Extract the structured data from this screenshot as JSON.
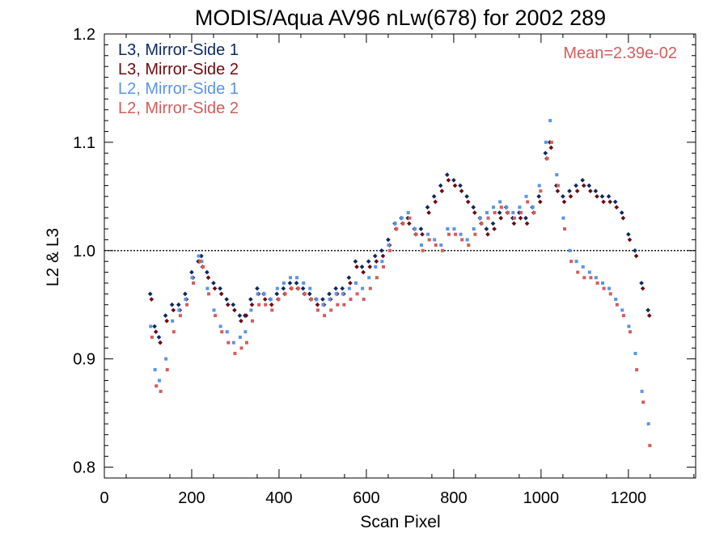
{
  "chart_data": {
    "type": "scatter",
    "title": "MODIS/Aqua AV96 nLw(678) for 2002 289",
    "xlabel": "Scan Pixel",
    "ylabel": "L2 & L3",
    "xlim": [
      0,
      1354
    ],
    "ylim": [
      0.79,
      1.2
    ],
    "xticks": [
      0,
      200,
      400,
      600,
      800,
      1000,
      1200
    ],
    "xtick_labels": [
      "0",
      "200",
      "400",
      "600",
      "800",
      "1000",
      "1200"
    ],
    "yticks": [
      0.8,
      0.9,
      1.0,
      1.1,
      1.2
    ],
    "ytick_labels": [
      "0.8",
      "0.9",
      "1.0",
      "1.1",
      "1.2"
    ],
    "reference_line": 1.0,
    "annotation": "Mean=2.39e-02",
    "legend_position": "top-left",
    "grid": false,
    "series": [
      {
        "name": "L3, Mirror-Side 1",
        "color": "#0a2a5e",
        "marker": "diamond",
        "x": [
          105,
          115,
          125,
          140,
          155,
          170,
          185,
          200,
          215,
          222,
          235,
          250,
          265,
          280,
          295,
          310,
          322,
          335,
          350,
          365,
          380,
          395,
          410,
          425,
          440,
          455,
          470,
          485,
          500,
          515,
          530,
          545,
          560,
          575,
          590,
          605,
          620,
          635,
          650,
          665,
          680,
          695,
          710,
          725,
          740,
          755,
          770,
          785,
          800,
          815,
          830,
          845,
          860,
          875,
          890,
          905,
          920,
          935,
          950,
          965,
          980,
          995,
          1010,
          1020,
          1035,
          1050,
          1065,
          1080,
          1095,
          1110,
          1125,
          1140,
          1155,
          1170,
          1185,
          1200,
          1215,
          1230,
          1245
        ],
        "y": [
          0.96,
          0.93,
          0.92,
          0.94,
          0.95,
          0.95,
          0.96,
          0.98,
          0.99,
          0.995,
          0.98,
          0.97,
          0.965,
          0.955,
          0.95,
          0.94,
          0.94,
          0.955,
          0.965,
          0.96,
          0.955,
          0.96,
          0.965,
          0.97,
          0.97,
          0.965,
          0.96,
          0.955,
          0.955,
          0.96,
          0.965,
          0.965,
          0.975,
          0.99,
          0.985,
          0.99,
          0.995,
          1.0,
          1.01,
          1.025,
          1.03,
          1.03,
          1.02,
          1.02,
          1.04,
          1.05,
          1.06,
          1.07,
          1.065,
          1.06,
          1.05,
          1.04,
          1.03,
          1.02,
          1.025,
          1.035,
          1.04,
          1.03,
          1.035,
          1.03,
          1.04,
          1.05,
          1.09,
          1.1,
          1.06,
          1.05,
          1.055,
          1.06,
          1.065,
          1.06,
          1.055,
          1.05,
          1.05,
          1.045,
          1.035,
          1.015,
          1.0,
          0.97,
          0.945
        ]
      },
      {
        "name": "L3, Mirror-Side 2",
        "color": "#6e0a10",
        "marker": "diamond",
        "x": [
          108,
          118,
          128,
          143,
          158,
          173,
          188,
          203,
          218,
          225,
          238,
          253,
          268,
          283,
          298,
          313,
          325,
          338,
          353,
          368,
          383,
          398,
          413,
          428,
          443,
          458,
          473,
          488,
          503,
          518,
          533,
          548,
          563,
          578,
          593,
          608,
          623,
          638,
          653,
          668,
          683,
          698,
          713,
          728,
          743,
          758,
          773,
          788,
          803,
          818,
          833,
          848,
          863,
          878,
          893,
          908,
          923,
          938,
          953,
          968,
          983,
          998,
          1013,
          1023,
          1038,
          1053,
          1068,
          1083,
          1098,
          1113,
          1128,
          1143,
          1158,
          1173,
          1188,
          1203,
          1218,
          1233,
          1248
        ],
        "y": [
          0.955,
          0.925,
          0.915,
          0.935,
          0.945,
          0.945,
          0.955,
          0.975,
          0.99,
          0.985,
          0.975,
          0.965,
          0.96,
          0.95,
          0.945,
          0.935,
          0.94,
          0.95,
          0.96,
          0.955,
          0.95,
          0.955,
          0.96,
          0.965,
          0.965,
          0.96,
          0.955,
          0.95,
          0.95,
          0.955,
          0.96,
          0.96,
          0.97,
          0.985,
          0.98,
          0.985,
          0.99,
          0.995,
          1.005,
          1.02,
          1.025,
          1.025,
          1.015,
          1.015,
          1.035,
          1.045,
          1.055,
          1.065,
          1.06,
          1.055,
          1.045,
          1.035,
          1.025,
          1.015,
          1.02,
          1.03,
          1.035,
          1.025,
          1.03,
          1.025,
          1.035,
          1.045,
          1.085,
          1.095,
          1.055,
          1.045,
          1.05,
          1.055,
          1.06,
          1.055,
          1.05,
          1.045,
          1.045,
          1.04,
          1.03,
          1.01,
          0.995,
          0.965,
          0.94
        ]
      },
      {
        "name": "L2, Mirror-Side 1",
        "color": "#5b93e8",
        "marker": "square",
        "x": [
          106,
          116,
          126,
          141,
          156,
          171,
          186,
          201,
          216,
          223,
          236,
          251,
          266,
          281,
          296,
          311,
          323,
          336,
          351,
          366,
          381,
          396,
          411,
          426,
          441,
          456,
          471,
          486,
          501,
          516,
          531,
          546,
          561,
          576,
          591,
          606,
          621,
          636,
          651,
          666,
          681,
          696,
          711,
          726,
          741,
          756,
          771,
          786,
          801,
          816,
          831,
          846,
          861,
          876,
          891,
          906,
          921,
          936,
          951,
          966,
          981,
          996,
          1011,
          1021,
          1036,
          1051,
          1066,
          1081,
          1096,
          1111,
          1126,
          1141,
          1156,
          1171,
          1186,
          1201,
          1216,
          1231,
          1246
        ],
        "y": [
          0.93,
          0.89,
          0.88,
          0.9,
          0.935,
          0.945,
          0.955,
          0.975,
          0.995,
          0.99,
          0.965,
          0.945,
          0.93,
          0.925,
          0.915,
          0.92,
          0.925,
          0.945,
          0.96,
          0.96,
          0.955,
          0.965,
          0.97,
          0.975,
          0.975,
          0.97,
          0.965,
          0.955,
          0.95,
          0.955,
          0.96,
          0.96,
          0.965,
          0.97,
          0.965,
          0.975,
          0.985,
          0.99,
          1.005,
          1.025,
          1.03,
          1.035,
          1.02,
          1.005,
          1.015,
          1.01,
          1.005,
          1.02,
          1.02,
          1.015,
          1.01,
          1.02,
          1.03,
          1.035,
          1.04,
          1.045,
          1.04,
          1.035,
          1.04,
          1.05,
          1.04,
          1.06,
          1.1,
          1.12,
          1.07,
          1.03,
          1.0,
          0.99,
          0.985,
          0.98,
          0.975,
          0.97,
          0.965,
          0.955,
          0.945,
          0.93,
          0.905,
          0.87,
          0.84
        ]
      },
      {
        "name": "L2, Mirror-Side 2",
        "color": "#d45c5c",
        "marker": "square",
        "x": [
          109,
          119,
          129,
          144,
          159,
          174,
          189,
          204,
          219,
          226,
          239,
          254,
          269,
          284,
          299,
          314,
          326,
          339,
          354,
          369,
          384,
          399,
          414,
          429,
          444,
          459,
          474,
          489,
          504,
          519,
          534,
          549,
          564,
          579,
          594,
          609,
          624,
          639,
          654,
          669,
          684,
          699,
          714,
          729,
          744,
          759,
          774,
          789,
          804,
          819,
          834,
          849,
          864,
          879,
          894,
          909,
          924,
          939,
          954,
          969,
          984,
          999,
          1014,
          1024,
          1039,
          1054,
          1069,
          1084,
          1099,
          1114,
          1129,
          1144,
          1159,
          1174,
          1189,
          1204,
          1219,
          1234,
          1249
        ],
        "y": [
          0.92,
          0.875,
          0.87,
          0.89,
          0.925,
          0.94,
          0.95,
          0.97,
          0.99,
          0.985,
          0.96,
          0.94,
          0.925,
          0.915,
          0.905,
          0.91,
          0.915,
          0.935,
          0.95,
          0.95,
          0.945,
          0.955,
          0.96,
          0.965,
          0.965,
          0.96,
          0.955,
          0.945,
          0.94,
          0.945,
          0.95,
          0.95,
          0.955,
          0.96,
          0.955,
          0.965,
          0.975,
          0.985,
          1.0,
          1.02,
          1.025,
          1.03,
          1.015,
          1.0,
          1.01,
          1.005,
          1.0,
          1.015,
          1.015,
          1.01,
          1.005,
          1.015,
          1.025,
          1.03,
          1.035,
          1.04,
          1.035,
          1.03,
          1.035,
          1.045,
          1.035,
          1.055,
          1.085,
          1.1,
          1.06,
          1.02,
          0.99,
          0.98,
          0.975,
          0.975,
          0.97,
          0.965,
          0.96,
          0.95,
          0.94,
          0.925,
          0.89,
          0.86,
          0.82
        ]
      }
    ]
  }
}
